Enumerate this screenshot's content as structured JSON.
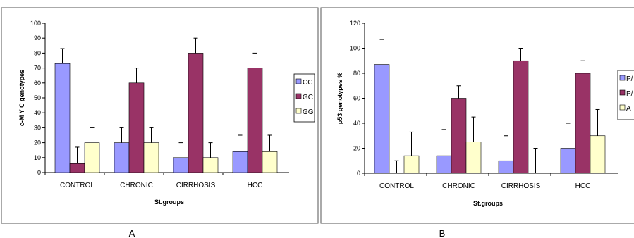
{
  "chart_data": [
    {
      "type": "bar",
      "panel_label": "A",
      "categories": [
        "CONTROL",
        "CHRONIC",
        "CIRRHOSIS",
        "HCC"
      ],
      "xlabel": "St.groups",
      "ylabel": "c-M Y C genotypes",
      "ylim": [
        0,
        100
      ],
      "yticks": [
        0,
        10,
        20,
        30,
        40,
        50,
        60,
        70,
        80,
        90,
        100
      ],
      "legend_position": "right",
      "series": [
        {
          "name": "CC",
          "color": "#9999ff",
          "values": [
            73,
            20,
            10,
            14
          ],
          "errors": [
            10,
            10,
            10,
            11
          ]
        },
        {
          "name": "GC",
          "color": "#993366",
          "values": [
            6,
            60,
            80,
            70
          ],
          "errors": [
            11,
            10,
            10,
            10
          ]
        },
        {
          "name": "GG",
          "color": "#ffffcc",
          "values": [
            20,
            20,
            10,
            14
          ],
          "errors": [
            10,
            10,
            10,
            11
          ]
        }
      ]
    },
    {
      "type": "bar",
      "panel_label": "B",
      "categories": [
        "CONTROL",
        "CHRONIC",
        "CIRRHOSIS",
        "HCC"
      ],
      "xlabel": "St.groups",
      "ylabel": "p53 genotypes %",
      "ylim": [
        0,
        120
      ],
      "yticks": [
        0,
        20,
        40,
        60,
        80,
        100,
        120
      ],
      "legend_position": "right",
      "series": [
        {
          "name": "P/",
          "color": "#9999ff",
          "values": [
            87,
            14,
            10,
            20
          ],
          "errors": [
            20,
            21,
            20,
            20
          ]
        },
        {
          "name": "P/",
          "color": "#993366",
          "values": [
            0,
            60,
            90,
            80
          ],
          "errors": [
            10,
            10,
            10,
            10
          ]
        },
        {
          "name": "A",
          "color": "#ffffcc",
          "values": [
            14,
            25,
            0,
            30
          ],
          "errors": [
            19,
            20,
            20,
            21
          ]
        }
      ]
    }
  ]
}
